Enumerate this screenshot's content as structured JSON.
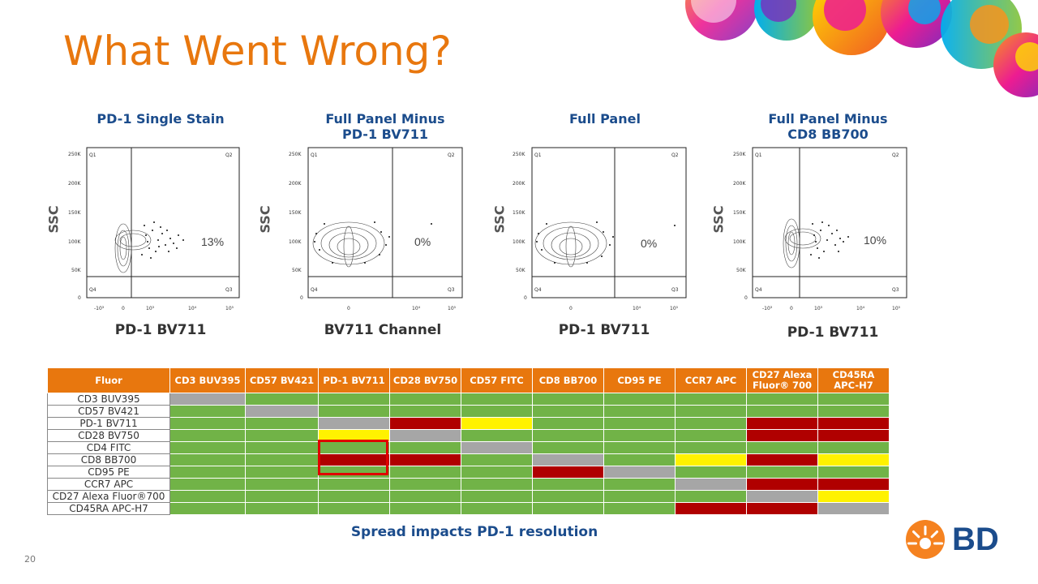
{
  "slide": {
    "title": "What Went Wrong?",
    "page_number": "20",
    "caption": "Spread impacts PD-1 resolution",
    "brand": "BD"
  },
  "plots": [
    {
      "title_line1": "PD-1 Single Stain",
      "title_line2": "",
      "ylabel": "SSC",
      "xlabel": "PD-1 BV711",
      "percent": "13%"
    },
    {
      "title_line1": "Full Panel Minus",
      "title_line2": "PD-1 BV711",
      "ylabel": "SSC",
      "xlabel": "BV711 Channel",
      "percent": "0%"
    },
    {
      "title_line1": "Full Panel",
      "title_line2": "",
      "ylabel": "SSC",
      "xlabel": "PD-1 BV711",
      "percent": "0%"
    },
    {
      "title_line1": "Full Panel Minus",
      "title_line2": "CD8 BB700",
      "ylabel": "SSC",
      "xlabel": "PD-1 BV711",
      "percent": "10%"
    }
  ],
  "plot_labels": {
    "quadrants": [
      "Q1",
      "Q2",
      "Q3",
      "Q4"
    ],
    "yticks": [
      "250K",
      "200K",
      "150K",
      "100K",
      "50K",
      "0"
    ],
    "xticks_log": [
      "-10³",
      "0",
      "10³",
      "10⁴",
      "10⁵"
    ],
    "xticks_log_b": [
      "0",
      "10⁴",
      "10⁵"
    ]
  },
  "table": {
    "header": [
      "Fluor",
      "CD3 BUV395",
      "CD57 BV421",
      "PD-1 BV711",
      "CD28 BV750",
      "CD57 FITC",
      "CD8 BB700",
      "CD95 PE",
      "CCR7 APC",
      "CD27 Alexa Fluor® 700",
      "CD45RA APC-H7"
    ],
    "rows": [
      {
        "label": "CD3 BUV395",
        "cells": [
          "gray",
          "green",
          "green",
          "green",
          "green",
          "green",
          "green",
          "green",
          "green",
          "green"
        ]
      },
      {
        "label": "CD57 BV421",
        "cells": [
          "green",
          "gray",
          "green",
          "green",
          "green",
          "green",
          "green",
          "green",
          "green",
          "green"
        ]
      },
      {
        "label": "PD-1 BV711",
        "cells": [
          "green",
          "green",
          "gray",
          "red",
          "yellow",
          "green",
          "green",
          "green",
          "red",
          "red"
        ]
      },
      {
        "label": "CD28 BV750",
        "cells": [
          "green",
          "green",
          "yellow",
          "gray",
          "green",
          "green",
          "green",
          "green",
          "red",
          "red"
        ]
      },
      {
        "label": "CD4 FITC",
        "cells": [
          "green",
          "green",
          "green",
          "green",
          "gray",
          "green",
          "green",
          "green",
          "green",
          "green"
        ]
      },
      {
        "label": "CD8 BB700",
        "cells": [
          "green",
          "green",
          "red",
          "red",
          "green",
          "gray",
          "green",
          "yellow",
          "red",
          "yellow"
        ]
      },
      {
        "label": "CD95 PE",
        "cells": [
          "green",
          "green",
          "green",
          "green",
          "green",
          "red",
          "gray",
          "green",
          "green",
          "green"
        ]
      },
      {
        "label": "CCR7 APC",
        "cells": [
          "green",
          "green",
          "green",
          "green",
          "green",
          "green",
          "green",
          "gray",
          "red",
          "red"
        ]
      },
      {
        "label": "CD27 Alexa Fluor®700",
        "cells": [
          "green",
          "green",
          "green",
          "green",
          "green",
          "green",
          "green",
          "green",
          "gray",
          "yellow"
        ]
      },
      {
        "label": "CD45RA APC-H7",
        "cells": [
          "green",
          "green",
          "green",
          "green",
          "green",
          "green",
          "green",
          "red",
          "red",
          "gray"
        ]
      }
    ]
  },
  "colors": {
    "accent": "#E8770E",
    "title_blue": "#1B4C8C",
    "green": "#71B347",
    "gray": "#A6A6A6",
    "red": "#B00000",
    "yellow": "#FFF200"
  }
}
